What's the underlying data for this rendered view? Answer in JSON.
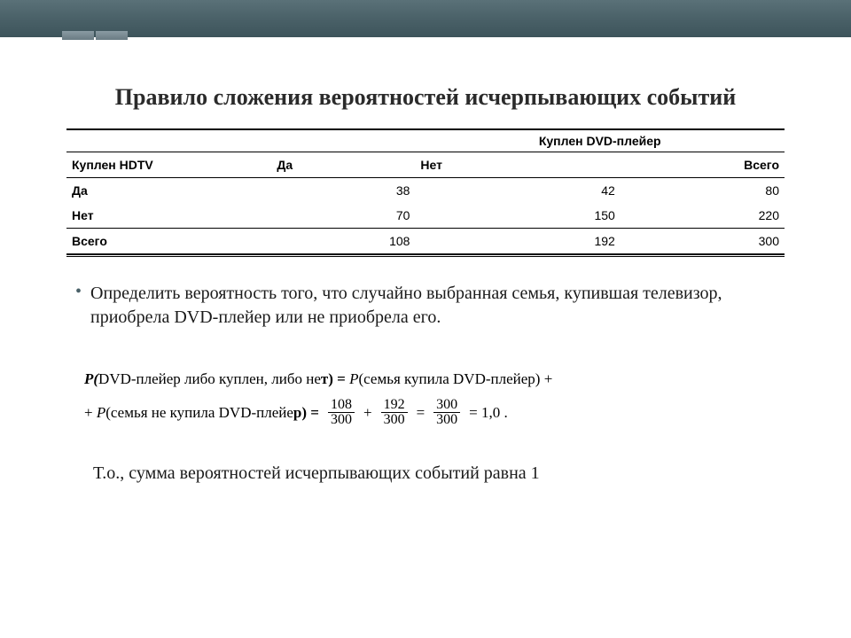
{
  "title": "Правило сложения вероятностей исчерпывающих событий",
  "table": {
    "super_header": "Куплен DVD-плейер",
    "headers": {
      "h1": "Куплен HDTV",
      "h2": "Да",
      "h3": "Нет",
      "h4": "Всего"
    },
    "rows": [
      {
        "label": "Да",
        "c2": "38",
        "c3": "42",
        "c4": "80"
      },
      {
        "label": "Нет",
        "c2": "70",
        "c3": "150",
        "c4": "220"
      },
      {
        "label": "Всего",
        "c2": "108",
        "c3": "192",
        "c4": "300"
      }
    ]
  },
  "bullet_text": "Определить вероятность того, что случайно выбранная семья, купившая телевизор, приобрела DVD-плейер или не приобрела его.",
  "formula": {
    "line1_b1": "P(",
    "line1_t1": "DVD-плейер либо куплен, либо не",
    "line1_b2": "т) = ",
    "line1_t2": "P",
    "line1_t3": "(семья купила DVD-плейер) +",
    "line2_pre": "+ ",
    "line2_t1": "P",
    "line2_t2": "(семья не купила DVD-плейе",
    "line2_b2": "р) =",
    "f1n": "108",
    "f1d": "300",
    "f2n": "192",
    "f2d": "300",
    "f3n": "300",
    "f3d": "300",
    "result": "= 1,0 ."
  },
  "conclusion": "Т.о.,  сумма вероятностей исчерпывающих событий  равна 1"
}
